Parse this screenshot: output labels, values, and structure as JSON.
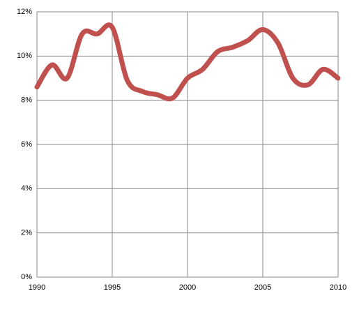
{
  "chart_data": {
    "type": "line",
    "x": [
      1990,
      1991,
      1992,
      1993,
      1994,
      1995,
      1996,
      1997,
      1998,
      1999,
      2000,
      2001,
      2002,
      2003,
      2004,
      2005,
      2006,
      2007,
      2008,
      2009,
      2010
    ],
    "series": [
      {
        "color": "#c0504d",
        "values": [
          8.6,
          9.6,
          9.0,
          11.0,
          11.0,
          11.3,
          8.9,
          8.4,
          8.25,
          8.1,
          9.0,
          9.4,
          10.2,
          10.4,
          10.7,
          11.2,
          10.6,
          9.0,
          8.7,
          9.4,
          9.0
        ]
      }
    ],
    "xlim": [
      1990,
      2010
    ],
    "xticks": [
      1990,
      1995,
      2000,
      2005,
      2010
    ],
    "ylim": [
      0,
      12
    ],
    "yticks": [
      {
        "value": 0,
        "label": "0%"
      },
      {
        "value": 2,
        "label": "2%"
      },
      {
        "value": 4,
        "label": "4%"
      },
      {
        "value": 6,
        "label": "6%"
      },
      {
        "value": 8,
        "label": "8%"
      },
      {
        "value": 10,
        "label": "10%"
      },
      {
        "value": 12,
        "label": "12%"
      }
    ],
    "grid": true
  }
}
